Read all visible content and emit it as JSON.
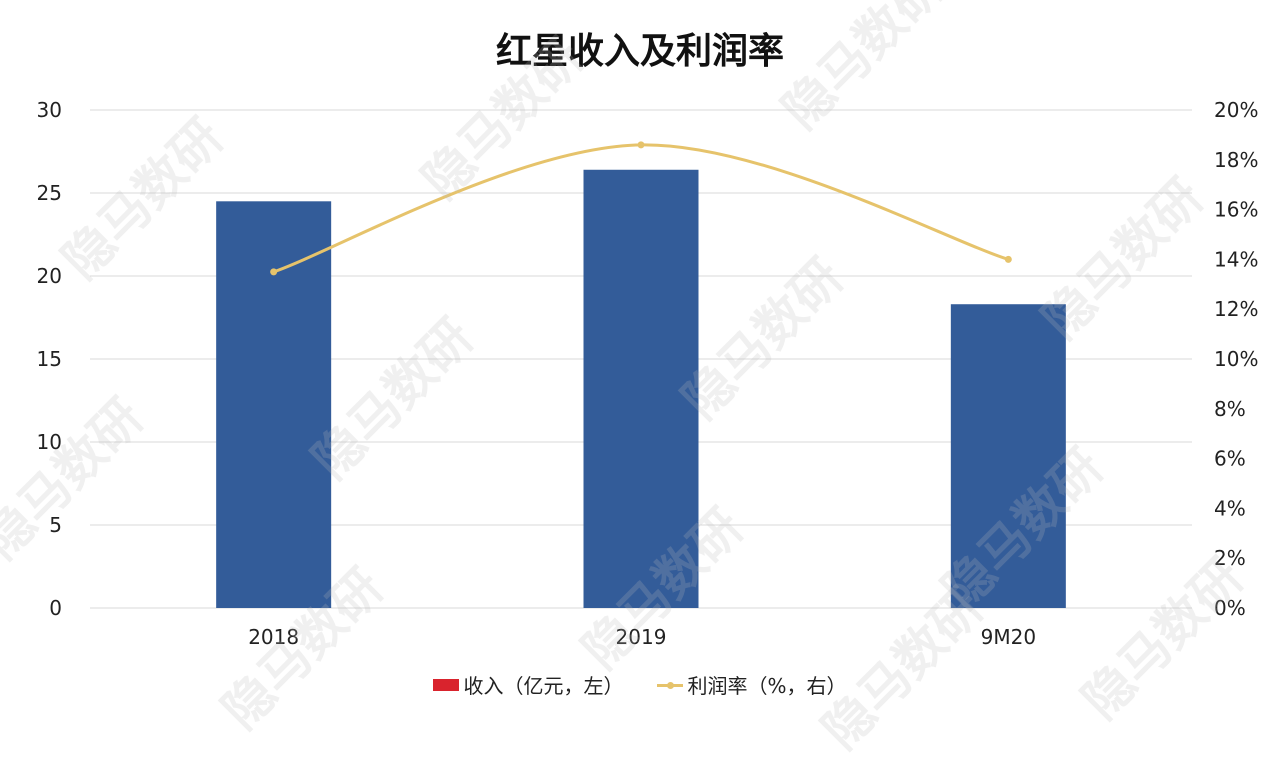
{
  "chart_data": {
    "type": "bar",
    "title": "红星收入及利润率",
    "categories": [
      "2018",
      "2019",
      "9M20"
    ],
    "series": [
      {
        "name": "收入（亿元，左）",
        "type": "bar",
        "axis": "left",
        "values": [
          24.5,
          26.4,
          18.3
        ]
      },
      {
        "name": "利润率（%，右）",
        "type": "line",
        "axis": "right",
        "values": [
          13.5,
          18.6,
          14.0
        ]
      }
    ],
    "y_left": {
      "range": [
        0,
        30
      ],
      "ticks": [
        "0",
        "5",
        "10",
        "15",
        "20",
        "25",
        "30"
      ]
    },
    "y_right": {
      "range": [
        0,
        20
      ],
      "ticks": [
        "0%",
        "2%",
        "4%",
        "6%",
        "8%",
        "10%",
        "12%",
        "14%",
        "16%",
        "18%",
        "20%"
      ]
    },
    "grid": true,
    "legend_position": "bottom"
  },
  "colors": {
    "bar": "#335c99",
    "line": "#e6c36b",
    "legend_bar": "#d9232d",
    "grid": "#d9d9d9"
  },
  "watermark": "隐马数研"
}
